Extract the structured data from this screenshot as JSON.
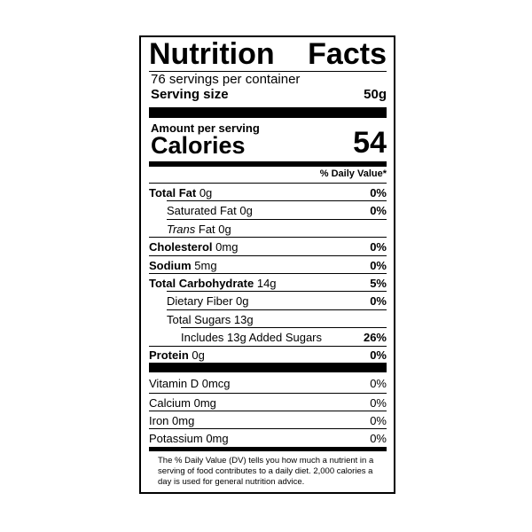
{
  "title": "Nutrition Facts",
  "servings": "76 servings per container",
  "serving_size": {
    "label": "Serving size",
    "value": "50g"
  },
  "amount_per_serving": "Amount per serving",
  "calories": {
    "label": "Calories",
    "value": "54"
  },
  "daily_value_header": "% Daily Value*",
  "nutrients": [
    {
      "name": "Total Fat",
      "amount": "0g",
      "dv": "0%"
    },
    {
      "name": "Saturated Fat",
      "amount": "0g",
      "dv": "0%"
    },
    {
      "name": "Trans",
      "amount": "Fat 0g"
    },
    {
      "name": "Cholesterol",
      "amount": "0mg",
      "dv": "0%"
    },
    {
      "name": "Sodium",
      "amount": "5mg",
      "dv": "0%"
    },
    {
      "name": "Total Carbohydrate",
      "amount": "14g",
      "dv": "5%"
    },
    {
      "name": "Dietary Fiber",
      "amount": "0g",
      "dv": "0%"
    },
    {
      "name": "Total Sugars",
      "amount": "13g"
    },
    {
      "name": "Includes 13g Added Sugars",
      "dv": "26%"
    },
    {
      "name": "Protein",
      "amount": "0g",
      "dv": "0%"
    }
  ],
  "vitamins": [
    {
      "name": "Vitamin D",
      "amount": "0mcg",
      "dv": "0%"
    },
    {
      "name": "Calcium",
      "amount": "0mg",
      "dv": "0%"
    },
    {
      "name": "Iron",
      "amount": "0mg",
      "dv": "0%"
    },
    {
      "name": "Potassium",
      "amount": "0mg",
      "dv": "0%"
    }
  ],
  "footnote": "The % Daily Value (DV) tells you how much a nutrient in a serving of food contributes to a daily diet. 2,000 calories a day is used for general nutrition advice."
}
